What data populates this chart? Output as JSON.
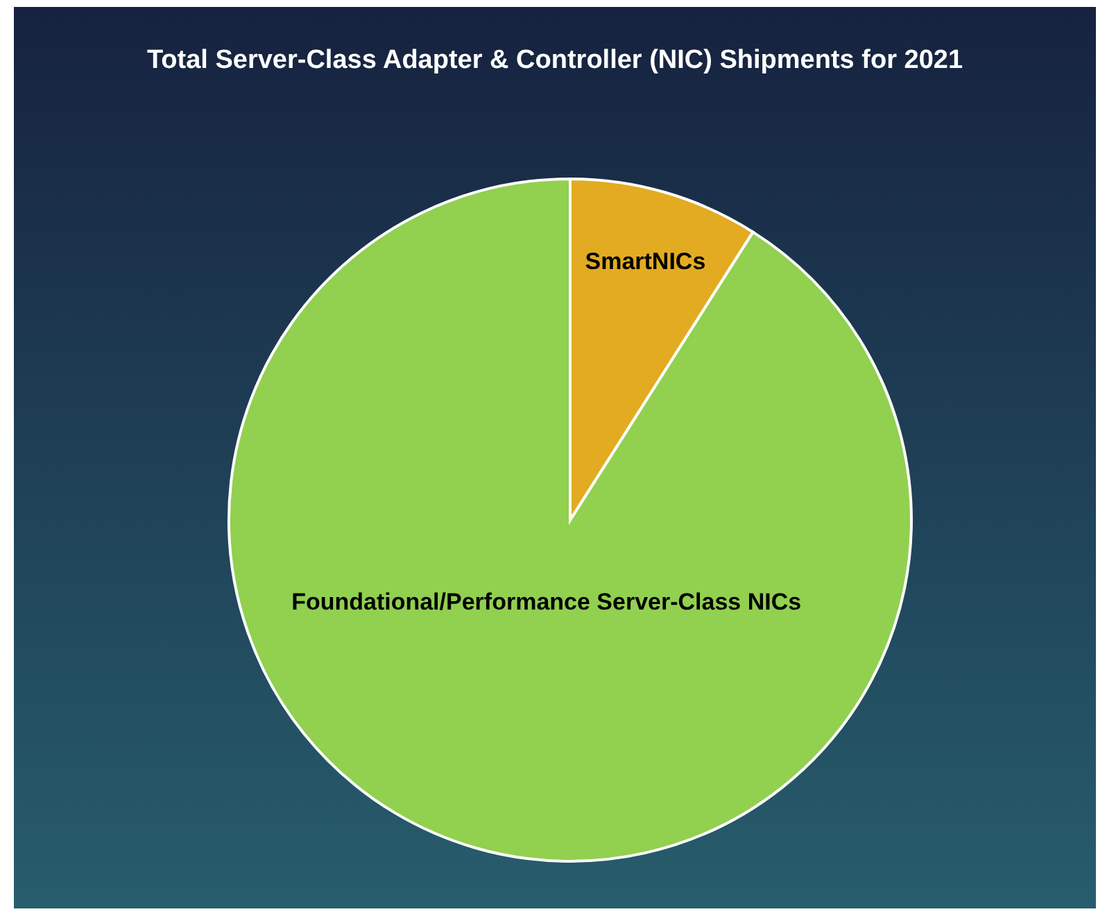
{
  "chart_data": {
    "type": "pie",
    "title": "Total Server-Class Adapter & Controller (NIC) Shipments for 2021",
    "categories": [
      "SmartNICs",
      "Foundational/Performance Server-Class NICs"
    ],
    "values": [
      9,
      91
    ],
    "colors": [
      "#e3ab21",
      "#92d050"
    ]
  }
}
